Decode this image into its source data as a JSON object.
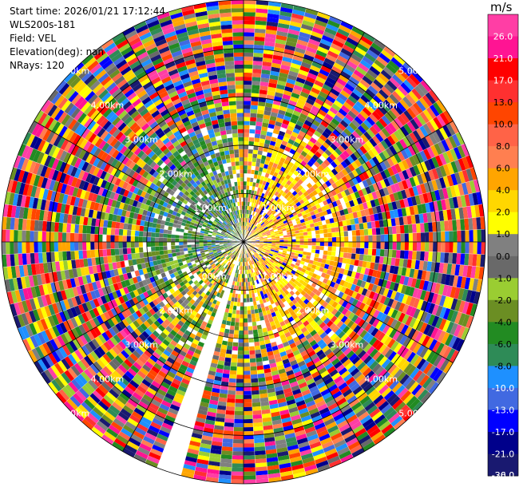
{
  "header": {
    "start_time": "Start time: 2026/01/21 17:12:44",
    "instrument": "WLS200s-181",
    "field": "Field: VEL",
    "elevation": "Elevation(deg): nan",
    "nrays": "NRays: 120"
  },
  "chart_data": {
    "type": "heatmap",
    "projection": "polar PPI",
    "field": "VEL",
    "n_rays": 120,
    "max_range_km": 5.0,
    "range_rings_km": [
      1.0,
      2.0,
      3.0,
      4.0,
      5.0
    ],
    "range_ring_labels": [
      "1.00km",
      "2.00km",
      "3.00km",
      "4.00km",
      "5.00km"
    ],
    "missing_sector_azimuth_deg": [
      195,
      200
    ],
    "colorbar": {
      "unit": "m/s",
      "tick_labels": [
        "26.0",
        "21.0",
        "17.0",
        "13.0",
        "10.0",
        "8.0",
        "6.0",
        "4.0",
        "2.0",
        "1.0",
        "0.0",
        "-1.0",
        "-2.0",
        "-4.0",
        "-6.0",
        "-8.0",
        "-10.0",
        "-13.0",
        "-17.0",
        "-21.0",
        "-26.0",
        "-30.0"
      ],
      "colors": [
        "#ff3ea5",
        "#ff1493",
        "#ff0000",
        "#ff3030",
        "#ff4500",
        "#ff6347",
        "#ff7f50",
        "#ffa500",
        "#ffd700",
        "#ffff00",
        "#808080",
        "#696969",
        "#9acd32",
        "#6b8e23",
        "#228b22",
        "#2e8b57",
        "#1e90ff",
        "#4169e1",
        "#0000ff",
        "#00008b",
        "#191970"
      ]
    },
    "pattern": {
      "near_field_km": 2.0,
      "positive_sector_azimuth_deg": [
        15,
        165
      ],
      "negative_sector_azimuth_deg": [
        240,
        350
      ]
    }
  }
}
